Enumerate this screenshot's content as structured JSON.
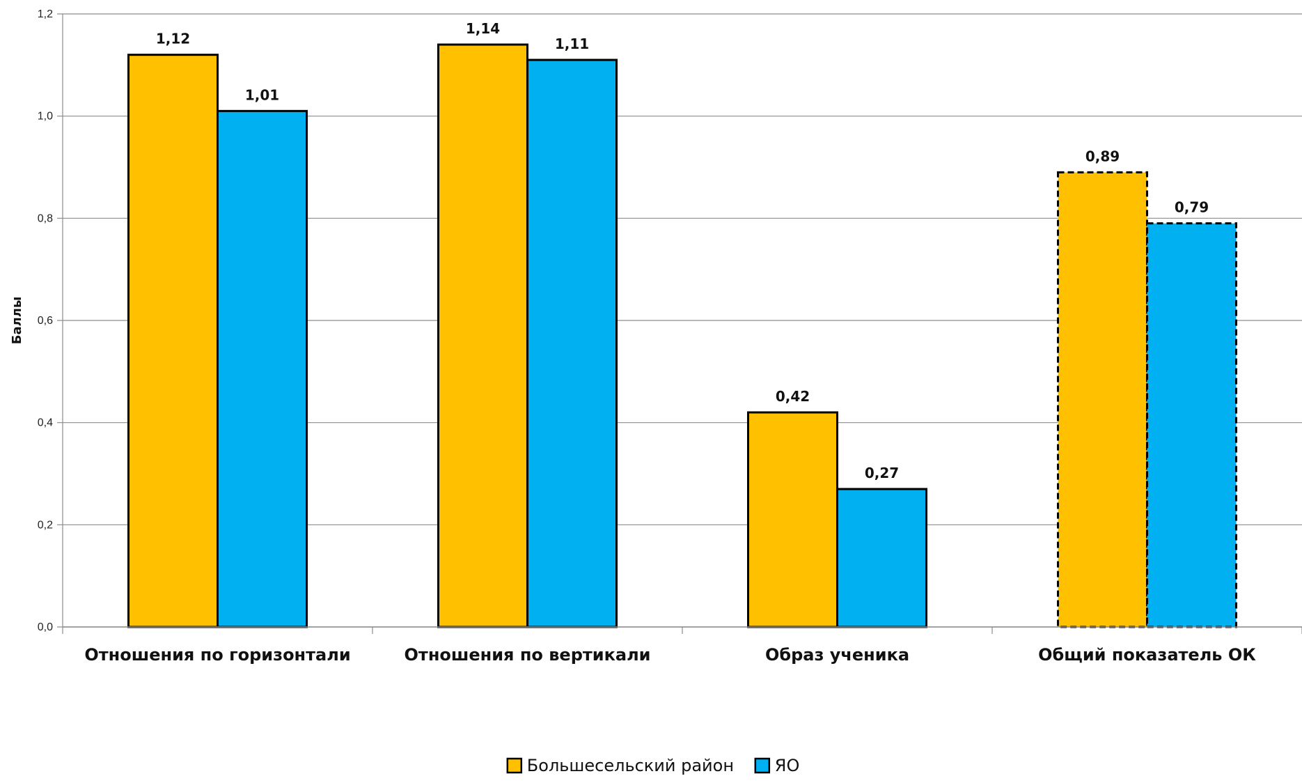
{
  "chart_data": {
    "type": "bar",
    "ylabel": "Баллы",
    "ylim": [
      0,
      1.2
    ],
    "yticks": [
      "0,0",
      "0,2",
      "0,4",
      "0,6",
      "0,8",
      "1,0",
      "1,2"
    ],
    "grid": true,
    "legend_position": "bottom",
    "categories": [
      "Отношения по горизонтали",
      "Отношения по вертикали",
      "Образ ученика",
      "Общий показатель ОК"
    ],
    "series": [
      {
        "name": "Большесельский район",
        "color": "#FFC000",
        "values": [
          1.12,
          1.14,
          0.42,
          0.89
        ],
        "labels": [
          "1,12",
          "1,14",
          "0,42",
          "0,89"
        ]
      },
      {
        "name": "ЯО",
        "color": "#00B0F0",
        "values": [
          1.01,
          1.11,
          0.27,
          0.79
        ],
        "labels": [
          "1,01",
          "1,11",
          "0,27",
          "0,79"
        ]
      }
    ],
    "dashed_border_categories": [
      "Общий показатель ОК"
    ]
  }
}
